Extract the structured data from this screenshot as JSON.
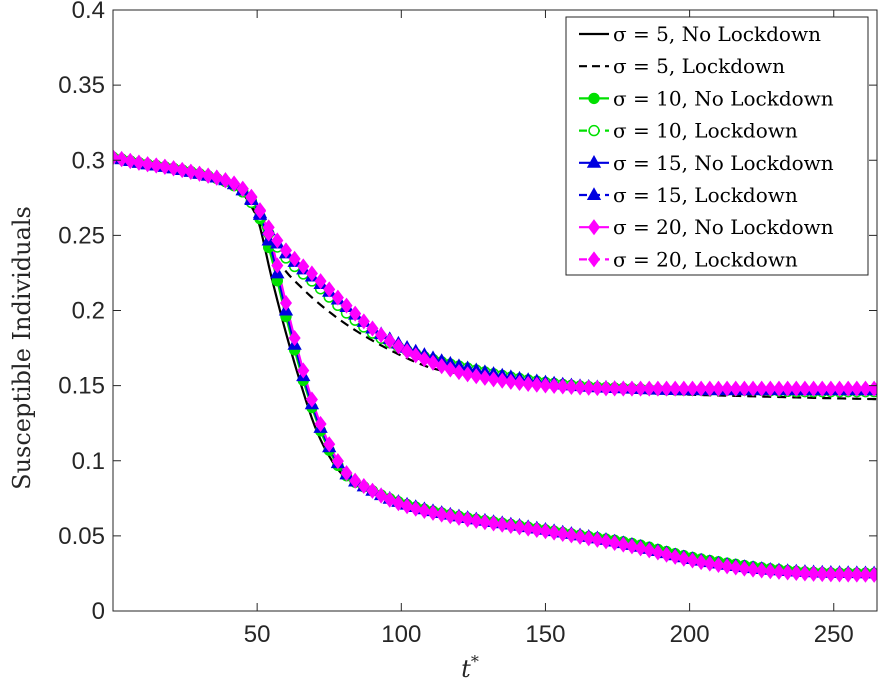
{
  "chart_data": {
    "type": "line",
    "xlabel": "t*",
    "ylabel": "Susceptible Individuals",
    "xlim": [
      0,
      265
    ],
    "ylim": [
      0,
      0.4
    ],
    "xticks": [
      50,
      100,
      150,
      200,
      250
    ],
    "yticks": [
      0,
      0.05,
      0.1,
      0.15,
      0.2,
      0.25,
      0.3,
      0.35,
      0.4
    ],
    "xtick_labels": [
      "50",
      "100",
      "150",
      "200",
      "250"
    ],
    "ytick_labels": [
      "0",
      "0.05",
      "0.1",
      "0.15",
      "0.2",
      "0.25",
      "0.3",
      "0.35",
      "0.4"
    ],
    "grid": false,
    "legend_position": "top-right",
    "series": [
      {
        "name": "σ = 5, No Lockdown",
        "color": "#000000",
        "dash": "solid",
        "marker": "none",
        "x": [
          0,
          10,
          20,
          30,
          40,
          45,
          50,
          55,
          60,
          65,
          70,
          75,
          80,
          90,
          100,
          120,
          140,
          160,
          180,
          200,
          220,
          240,
          265
        ],
        "y": [
          0.302,
          0.298,
          0.295,
          0.291,
          0.285,
          0.278,
          0.262,
          0.222,
          0.185,
          0.152,
          0.123,
          0.103,
          0.09,
          0.08,
          0.072,
          0.064,
          0.058,
          0.052,
          0.046,
          0.037,
          0.03,
          0.026,
          0.025
        ]
      },
      {
        "name": "σ = 5, Lockdown",
        "color": "#000000",
        "dash": "dashed",
        "marker": "none",
        "x": [
          0,
          10,
          20,
          30,
          40,
          45,
          50,
          55,
          60,
          65,
          70,
          80,
          90,
          100,
          110,
          120,
          140,
          160,
          180,
          200,
          220,
          240,
          265
        ],
        "y": [
          0.302,
          0.298,
          0.295,
          0.291,
          0.285,
          0.278,
          0.262,
          0.24,
          0.226,
          0.216,
          0.207,
          0.192,
          0.18,
          0.17,
          0.162,
          0.158,
          0.152,
          0.148,
          0.146,
          0.144,
          0.143,
          0.142,
          0.141
        ]
      },
      {
        "name": "σ = 10, No Lockdown",
        "color": "#00e000",
        "dash": "solid",
        "marker": "circle",
        "x": [
          0,
          10,
          20,
          30,
          40,
          45,
          50,
          55,
          60,
          65,
          70,
          75,
          80,
          90,
          100,
          120,
          140,
          160,
          180,
          200,
          220,
          240,
          265
        ],
        "y": [
          0.302,
          0.298,
          0.295,
          0.291,
          0.285,
          0.279,
          0.266,
          0.235,
          0.196,
          0.16,
          0.13,
          0.107,
          0.092,
          0.08,
          0.072,
          0.063,
          0.057,
          0.051,
          0.045,
          0.036,
          0.03,
          0.026,
          0.025
        ]
      },
      {
        "name": "σ = 10, Lockdown",
        "color": "#00e000",
        "dash": "dashed",
        "marker": "circle-open",
        "x": [
          0,
          10,
          20,
          30,
          40,
          45,
          50,
          55,
          60,
          65,
          70,
          80,
          90,
          100,
          110,
          120,
          140,
          160,
          180,
          200,
          220,
          240,
          265
        ],
        "y": [
          0.302,
          0.298,
          0.295,
          0.291,
          0.285,
          0.279,
          0.266,
          0.248,
          0.235,
          0.226,
          0.218,
          0.2,
          0.185,
          0.175,
          0.168,
          0.163,
          0.155,
          0.15,
          0.148,
          0.147,
          0.147,
          0.146,
          0.146
        ]
      },
      {
        "name": "σ = 15, No Lockdown",
        "color": "#0000e0",
        "dash": "solid",
        "marker": "triangle",
        "x": [
          0,
          10,
          20,
          30,
          40,
          45,
          50,
          55,
          60,
          65,
          70,
          75,
          80,
          90,
          100,
          120,
          140,
          160,
          180,
          200,
          220,
          240,
          265
        ],
        "y": [
          0.302,
          0.298,
          0.295,
          0.291,
          0.286,
          0.28,
          0.268,
          0.24,
          0.2,
          0.163,
          0.132,
          0.109,
          0.093,
          0.08,
          0.072,
          0.063,
          0.057,
          0.051,
          0.044,
          0.035,
          0.029,
          0.026,
          0.025
        ]
      },
      {
        "name": "σ = 15, Lockdown",
        "color": "#0000e0",
        "dash": "dashed",
        "marker": "triangle",
        "x": [
          0,
          10,
          20,
          30,
          40,
          45,
          50,
          55,
          60,
          65,
          70,
          80,
          90,
          100,
          110,
          120,
          140,
          160,
          180,
          200,
          220,
          240,
          265
        ],
        "y": [
          0.302,
          0.298,
          0.295,
          0.291,
          0.286,
          0.28,
          0.268,
          0.25,
          0.238,
          0.229,
          0.221,
          0.204,
          0.188,
          0.177,
          0.169,
          0.163,
          0.155,
          0.15,
          0.148,
          0.147,
          0.147,
          0.147,
          0.147
        ]
      },
      {
        "name": "σ = 20, No Lockdown",
        "color": "#ff00ff",
        "dash": "solid",
        "marker": "diamond",
        "x": [
          0,
          10,
          20,
          30,
          40,
          45,
          50,
          55,
          60,
          65,
          70,
          75,
          80,
          90,
          100,
          120,
          140,
          160,
          180,
          200,
          220,
          240,
          265
        ],
        "y": [
          0.302,
          0.298,
          0.295,
          0.291,
          0.286,
          0.281,
          0.27,
          0.245,
          0.205,
          0.167,
          0.135,
          0.111,
          0.094,
          0.08,
          0.071,
          0.062,
          0.056,
          0.05,
          0.043,
          0.034,
          0.028,
          0.025,
          0.024
        ]
      },
      {
        "name": "σ = 20, Lockdown",
        "color": "#ff00ff",
        "dash": "dashed",
        "marker": "diamond",
        "x": [
          0,
          10,
          20,
          30,
          40,
          45,
          50,
          55,
          60,
          65,
          70,
          80,
          90,
          100,
          110,
          120,
          140,
          160,
          180,
          200,
          220,
          240,
          265
        ],
        "y": [
          0.302,
          0.298,
          0.295,
          0.291,
          0.286,
          0.281,
          0.27,
          0.252,
          0.24,
          0.231,
          0.223,
          0.205,
          0.188,
          0.175,
          0.166,
          0.159,
          0.152,
          0.149,
          0.148,
          0.148,
          0.148,
          0.148,
          0.148
        ]
      }
    ]
  }
}
